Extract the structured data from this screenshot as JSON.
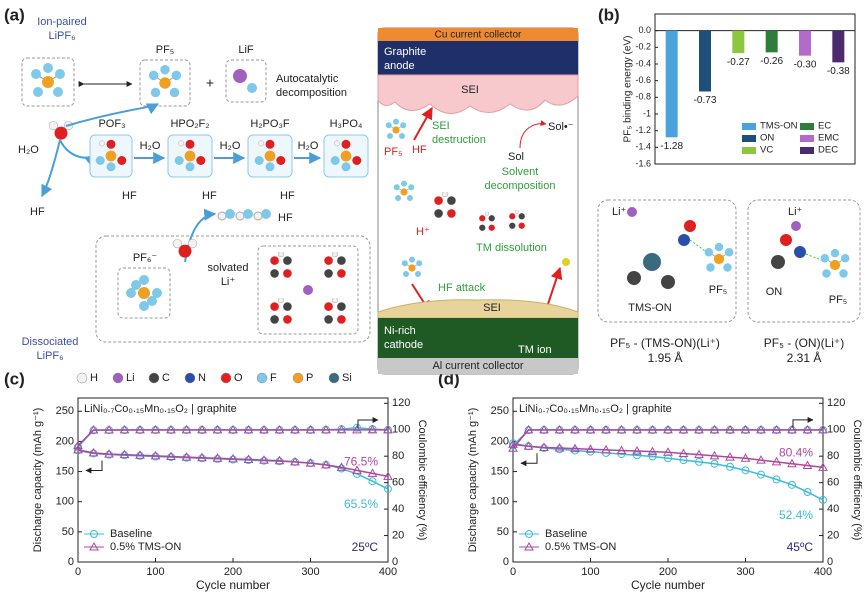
{
  "panel_labels": [
    "(a)",
    "(b)",
    "(c)",
    "(d)"
  ],
  "decomposition": {
    "ion_paired": [
      "Ion-paired",
      "LiPF₆"
    ],
    "pf5": "PF₅",
    "plus": "+",
    "lif": "LiF",
    "autocatalytic": [
      "Autocatalytic",
      "decomposition"
    ],
    "water": [
      "H₂O",
      "H₂O",
      "H₂O",
      "H₂O"
    ],
    "products": [
      "POF₃",
      "HPO₂F₂",
      "H₂PO₃F",
      "H₃PO₄"
    ],
    "hf": [
      "HF",
      "HF",
      "HF",
      "HF",
      "HF"
    ],
    "dissociated": [
      "Dissociated",
      "LiPF₆"
    ],
    "pf6": "PF₆⁻",
    "solvated": [
      "solvated",
      "Li⁺"
    ]
  },
  "atom_legend": [
    {
      "symbol": "H",
      "color": "#f2f2f2"
    },
    {
      "symbol": "Li",
      "color": "#a060c0"
    },
    {
      "symbol": "C",
      "color": "#444444"
    },
    {
      "symbol": "N",
      "color": "#2a4fa8"
    },
    {
      "symbol": "O",
      "color": "#e02020"
    },
    {
      "symbol": "F",
      "color": "#7ec8ea"
    },
    {
      "symbol": "P",
      "color": "#f0a020"
    },
    {
      "symbol": "Si",
      "color": "#3a6a80"
    }
  ],
  "cell": {
    "cu": "Cu current collector",
    "anode": [
      "Graphite",
      "anode"
    ],
    "sei_top": "SEI",
    "sol_radical": "Sol•⁻",
    "sol": "Sol",
    "pf5": "PF₅",
    "hf": "HF",
    "sei_destruction": [
      "SEI",
      "destruction"
    ],
    "solvent_decomposition": [
      "Solvent",
      "decomposition"
    ],
    "proton": "H⁺",
    "tm_dissolution": "TM dissolution",
    "hf_attack": "HF attack",
    "sei_bottom": "SEI",
    "cathode": [
      "Ni-rich",
      "cathode"
    ],
    "tm_ion": "TM ion",
    "al": "Al current collector"
  },
  "complexes": [
    {
      "li": "Li⁺",
      "ligand": "TMS-ON",
      "pf5": "PF₅",
      "name": "PF₅ - (TMS-ON)(Li⁺)",
      "distance": "1.95 Å"
    },
    {
      "li": "Li⁺",
      "ligand": "ON",
      "pf5": "PF₅",
      "name": "PF₅ - (ON)(Li⁺)",
      "distance": "2.31 Å"
    }
  ],
  "chart_data": [
    {
      "type": "bar",
      "ylabel": "PF₅ binding energy (eV)",
      "categories": [
        "TMS-ON",
        "ON",
        "VC",
        "EC",
        "EMC",
        "DEC"
      ],
      "values": [
        -1.28,
        -0.73,
        -0.27,
        -0.26,
        -0.3,
        -0.38
      ],
      "value_labels": [
        "-1.28",
        "-0.73",
        "-0.27",
        "-0.26",
        "-0.30",
        "-0.38"
      ],
      "colors": [
        "#4aa3dc",
        "#1d4f7a",
        "#8dc63f",
        "#2e7d3a",
        "#b36bc9",
        "#4b2a6e"
      ],
      "ylim": [
        -1.6,
        0.2
      ],
      "yticks": [
        -1.6,
        -1.4,
        -1.2,
        -1.0,
        -0.8,
        -0.6,
        -0.4,
        -0.2,
        {
          "value": 0,
          "label": "0.0"
        }
      ],
      "legend": "lower right"
    },
    {
      "type": "line",
      "title": "LiNi₀.₇Co₀.₁₅Mn₀.₁₅O₂ | graphite",
      "xlabel": "Cycle number",
      "ylabel": "Discharge capacity (mAh g⁻¹)",
      "y2label": "Coulombic efficiency (%)",
      "x": [
        0,
        20,
        40,
        60,
        80,
        100,
        120,
        140,
        160,
        180,
        200,
        220,
        240,
        260,
        280,
        300,
        320,
        340,
        360,
        380,
        400
      ],
      "series": [
        {
          "name": "Baseline",
          "color": "#3bbcd9",
          "marker": "circle",
          "values": [
            185,
            180,
            178,
            177,
            176,
            175,
            174,
            173,
            172,
            171,
            170,
            169,
            168,
            167,
            166,
            164,
            161,
            155,
            146,
            134,
            121
          ],
          "y2_values": [
            87,
            99.6,
            99.7,
            99.7,
            99.8,
            99.8,
            99.8,
            99.8,
            99.8,
            99.8,
            99.8,
            99.8,
            99.8,
            99.8,
            99.8,
            99.8,
            99.9,
            100.5,
            101.5,
            100.5,
            99.9
          ]
        },
        {
          "name": "0.5% TMS-ON",
          "color": "#b0479e",
          "marker": "triangle",
          "values": [
            186,
            181,
            179,
            178,
            177,
            176,
            175,
            174,
            173,
            172,
            171,
            170,
            169,
            168,
            166,
            164,
            161,
            157,
            152,
            147,
            142
          ],
          "y2_values": [
            88,
            99.8,
            99.8,
            99.9,
            99.9,
            99.9,
            99.9,
            99.9,
            99.9,
            99.9,
            99.9,
            99.9,
            99.9,
            99.9,
            99.9,
            99.9,
            99.9,
            99.9,
            99.9,
            99.9,
            99.9
          ]
        }
      ],
      "xlim": [
        0,
        400
      ],
      "xticks": [
        0,
        100,
        200,
        300,
        400
      ],
      "ylim": [
        0,
        272
      ],
      "yticks": [
        0,
        50,
        100,
        150,
        200,
        250
      ],
      "y2lim": [
        0,
        124
      ],
      "y2ticks": [
        0,
        20,
        40,
        60,
        80,
        100,
        120
      ],
      "annotations": [
        "76.5%",
        "65.5%",
        "25ºC"
      ],
      "legend": "lower left"
    },
    {
      "type": "line",
      "title": "LiNi₀.₇Co₀.₁₅Mn₀.₁₅O₂ | graphite",
      "xlabel": "Cycle number",
      "ylabel": "Discharge capacity (mAh g⁻¹)",
      "y2label": "Coulombic efficiency (%)",
      "x": [
        0,
        20,
        40,
        60,
        80,
        100,
        120,
        140,
        160,
        180,
        200,
        220,
        240,
        260,
        280,
        300,
        320,
        340,
        360,
        380,
        400
      ],
      "series": [
        {
          "name": "Baseline",
          "color": "#3bbcd9",
          "marker": "circle",
          "values": [
            197,
            192,
            189,
            187,
            185,
            183,
            181,
            179,
            177,
            175,
            172,
            169,
            166,
            163,
            158,
            152,
            145,
            137,
            128,
            116,
            103
          ],
          "y2_values": [
            88,
            99.7,
            99.8,
            99.8,
            99.8,
            99.8,
            99.8,
            99.8,
            99.8,
            99.8,
            99.8,
            99.8,
            99.8,
            99.8,
            99.8,
            99.8,
            99.8,
            99.8,
            99.8,
            99.8,
            99.8
          ]
        },
        {
          "name": "0.5% TMS-ON",
          "color": "#b0479e",
          "marker": "triangle",
          "values": [
            195,
            192,
            190,
            189,
            188,
            187,
            186,
            185,
            184,
            183,
            182,
            180,
            178,
            176,
            174,
            172,
            169,
            166,
            163,
            160,
            157
          ],
          "y2_values": [
            86,
            99.9,
            99.9,
            99.9,
            99.9,
            99.9,
            99.9,
            99.9,
            99.9,
            99.9,
            99.9,
            99.9,
            99.9,
            99.9,
            99.9,
            99.9,
            99.9,
            99.9,
            99.9,
            99.9,
            99.9
          ]
        }
      ],
      "xlim": [
        0,
        400
      ],
      "xticks": [
        0,
        100,
        200,
        300,
        400
      ],
      "ylim": [
        0,
        272
      ],
      "yticks": [
        0,
        50,
        100,
        150,
        200,
        250
      ],
      "y2lim": [
        0,
        124
      ],
      "y2ticks": [
        0,
        20,
        40,
        60,
        80,
        100,
        120
      ],
      "annotations": [
        "80.4%",
        "52.4%",
        "45ºC"
      ],
      "legend": "lower left"
    }
  ]
}
